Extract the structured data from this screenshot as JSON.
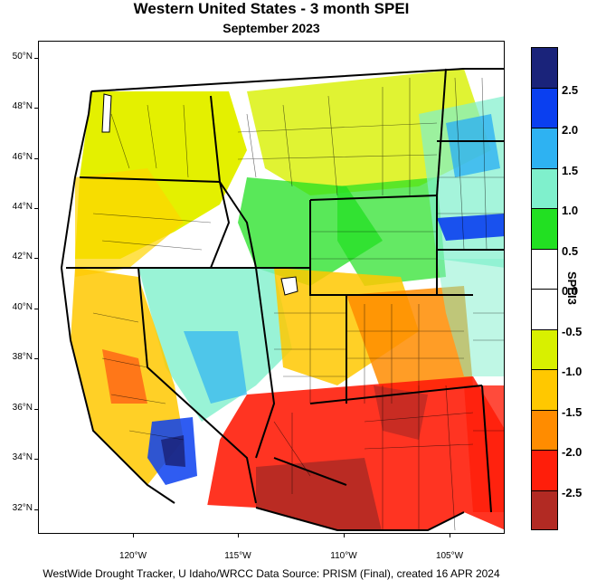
{
  "title": "Western United States - 3 month SPEI",
  "subtitle": "September 2023",
  "footer": "WestWide Drought Tracker, U Idaho/WRCC Data Source: PRISM (Final), created 16 APR 2024",
  "latitude_labels": [
    "50°N",
    "48°N",
    "46°N",
    "44°N",
    "42°N",
    "40°N",
    "38°N",
    "36°N",
    "34°N",
    "32°N"
  ],
  "longitude_labels": [
    "120°W",
    "115°W",
    "110°W",
    "105°W"
  ],
  "colorbar": {
    "title": "SPEI3",
    "labels": [
      "2.5",
      "2.0",
      "1.5",
      "1.0",
      "0.5",
      "0.0",
      "-0.5",
      "-1.0",
      "-1.5",
      "-2.0",
      "-2.5"
    ],
    "colors": [
      "#1a237a",
      "#0a3ff0",
      "#2eb2f2",
      "#7ff0cc",
      "#22e022",
      "#ffffff",
      "#ffffff",
      "#d8f000",
      "#ffc800",
      "#ff8c00",
      "#ff1e0a",
      "#b22a23"
    ]
  }
}
